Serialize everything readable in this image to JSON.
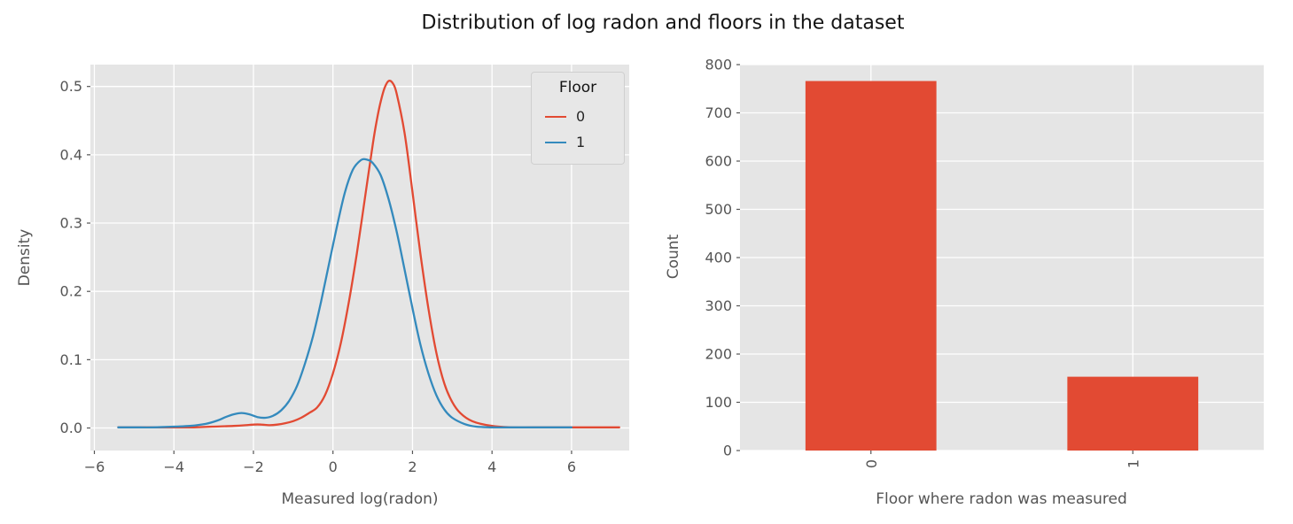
{
  "figure": {
    "title": "Distribution of log radon and floors in the dataset",
    "background": "#FFFFFF",
    "panel_background": "#E5E5E5",
    "grid_color": "#FFFFFF",
    "text_color": "#555555",
    "title_color": "#141414"
  },
  "chart_data": [
    {
      "type": "line",
      "subtype": "kde",
      "title": "",
      "xlabel": "Measured log(radon)",
      "ylabel": "Density",
      "xlim": [
        -6.1,
        7.45
      ],
      "ylim": [
        -0.033,
        0.532
      ],
      "grid": true,
      "xticks": [
        {
          "v": -6,
          "label": "−6"
        },
        {
          "v": -4,
          "label": "−4"
        },
        {
          "v": -2,
          "label": "−2"
        },
        {
          "v": 0,
          "label": "0"
        },
        {
          "v": 2,
          "label": "2"
        },
        {
          "v": 4,
          "label": "4"
        },
        {
          "v": 6,
          "label": "6"
        }
      ],
      "yticks": [
        {
          "v": 0.0,
          "label": "0.0"
        },
        {
          "v": 0.1,
          "label": "0.1"
        },
        {
          "v": 0.2,
          "label": "0.2"
        },
        {
          "v": 0.3,
          "label": "0.3"
        },
        {
          "v": 0.4,
          "label": "0.4"
        },
        {
          "v": 0.5,
          "label": "0.5"
        }
      ],
      "legend": {
        "title": "Floor",
        "position": "upper right",
        "entries": [
          {
            "label": "0",
            "color": "#E24A33"
          },
          {
            "label": "1",
            "color": "#348ABD"
          }
        ]
      },
      "series": [
        {
          "name": "0",
          "color": "#E24A33",
          "x": [
            -5.4,
            -5.0,
            -4.5,
            -4.0,
            -3.5,
            -3.0,
            -2.5,
            -2.2,
            -2.0,
            -1.8,
            -1.6,
            -1.4,
            -1.2,
            -1.0,
            -0.8,
            -0.6,
            -0.4,
            -0.2,
            0.0,
            0.2,
            0.4,
            0.6,
            0.8,
            1.0,
            1.1,
            1.2,
            1.3,
            1.4,
            1.5,
            1.6,
            1.8,
            2.0,
            2.2,
            2.4,
            2.6,
            2.8,
            3.0,
            3.2,
            3.5,
            4.0,
            4.5,
            5.0,
            5.5,
            6.0,
            6.5,
            7.0,
            7.2
          ],
          "y": [
            0.001,
            0.001,
            0.001,
            0.001,
            0.001,
            0.002,
            0.003,
            0.004,
            0.005,
            0.005,
            0.004,
            0.005,
            0.007,
            0.01,
            0.015,
            0.022,
            0.03,
            0.048,
            0.08,
            0.125,
            0.185,
            0.255,
            0.335,
            0.415,
            0.45,
            0.478,
            0.498,
            0.508,
            0.505,
            0.49,
            0.432,
            0.345,
            0.255,
            0.175,
            0.11,
            0.065,
            0.038,
            0.022,
            0.01,
            0.003,
            0.001,
            0.001,
            0.001,
            0.001,
            0.001,
            0.001,
            0.001
          ]
        },
        {
          "name": "1",
          "color": "#348ABD",
          "x": [
            -5.4,
            -5.0,
            -4.5,
            -4.0,
            -3.6,
            -3.2,
            -2.9,
            -2.7,
            -2.5,
            -2.3,
            -2.1,
            -1.9,
            -1.7,
            -1.5,
            -1.3,
            -1.1,
            -0.9,
            -0.7,
            -0.5,
            -0.3,
            -0.1,
            0.1,
            0.3,
            0.5,
            0.7,
            0.85,
            1.0,
            1.2,
            1.4,
            1.6,
            1.8,
            2.0,
            2.2,
            2.4,
            2.6,
            2.8,
            3.0,
            3.3,
            3.6,
            4.0,
            4.5,
            5.0,
            5.5,
            6.0
          ],
          "y": [
            0.001,
            0.001,
            0.001,
            0.002,
            0.003,
            0.006,
            0.011,
            0.016,
            0.02,
            0.022,
            0.02,
            0.016,
            0.015,
            0.018,
            0.026,
            0.04,
            0.062,
            0.095,
            0.135,
            0.185,
            0.24,
            0.295,
            0.345,
            0.378,
            0.392,
            0.393,
            0.388,
            0.37,
            0.335,
            0.288,
            0.232,
            0.175,
            0.122,
            0.08,
            0.048,
            0.027,
            0.015,
            0.006,
            0.002,
            0.001,
            0.001,
            0.001,
            0.001,
            0.001
          ]
        }
      ]
    },
    {
      "type": "bar",
      "title": "",
      "xlabel": "Floor where radon was measured",
      "ylabel": "Count",
      "categories": [
        "0",
        "1"
      ],
      "values": [
        766,
        153
      ],
      "bar_color": "#E24A33",
      "bar_width": 0.5,
      "xlim": [
        -0.5,
        1.5
      ],
      "ylim": [
        0,
        800
      ],
      "grid": true,
      "tick_label_rotation": 90,
      "yticks": [
        {
          "v": 0,
          "label": "0"
        },
        {
          "v": 100,
          "label": "100"
        },
        {
          "v": 200,
          "label": "200"
        },
        {
          "v": 300,
          "label": "300"
        },
        {
          "v": 400,
          "label": "400"
        },
        {
          "v": 500,
          "label": "500"
        },
        {
          "v": 600,
          "label": "600"
        },
        {
          "v": 700,
          "label": "700"
        },
        {
          "v": 800,
          "label": "800"
        }
      ]
    }
  ]
}
